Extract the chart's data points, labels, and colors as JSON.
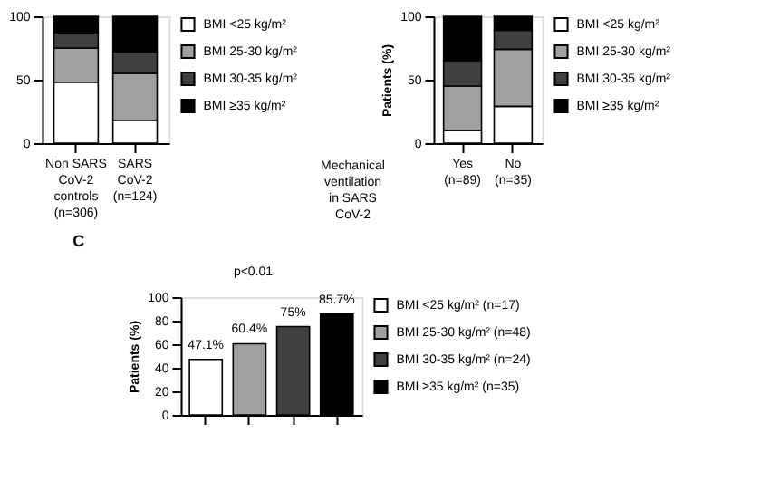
{
  "chart_data": [
    {
      "type": "bar",
      "stacked": true,
      "categories": [
        "Non SARS\nCoV-2\ncontrols\n(n=306)",
        "SARS\nCoV-2\n(n=124)"
      ],
      "ylim": [
        0,
        100
      ],
      "yticks": [
        0,
        50,
        100
      ],
      "legend": "right",
      "series": [
        {
          "name": "BMI <25 kg/m²",
          "color": "#ffffff",
          "values": [
            48,
            18
          ]
        },
        {
          "name": "BMI 25-30 kg/m²",
          "color": "#a0a0a0",
          "values": [
            27,
            37
          ]
        },
        {
          "name": "BMI 30-35 kg/m²",
          "color": "#404040",
          "values": [
            12,
            17
          ]
        },
        {
          "name": "BMI ≥35 kg/m²",
          "color": "#000000",
          "values": [
            13,
            28
          ]
        }
      ]
    },
    {
      "type": "bar",
      "stacked": true,
      "categories": [
        "Yes\n(n=89)",
        "No\n(n=35)"
      ],
      "xlabel": "Mechanical\nventilation\nin SARS\nCoV-2",
      "ylabel": "Patients (%)",
      "ylim": [
        0,
        100
      ],
      "yticks": [
        0,
        50,
        100
      ],
      "legend": "right",
      "series": [
        {
          "name": "BMI <25 kg/m²",
          "color": "#ffffff",
          "values": [
            10,
            29
          ]
        },
        {
          "name": "BMI 25-30 kg/m²",
          "color": "#a0a0a0",
          "values": [
            35,
            45
          ]
        },
        {
          "name": "BMI 30-35 kg/m²",
          "color": "#404040",
          "values": [
            20,
            15
          ]
        },
        {
          "name": "BMI ≥35 kg/m²",
          "color": "#000000",
          "values": [
            35,
            11
          ]
        }
      ]
    },
    {
      "type": "bar",
      "title": "C",
      "annotations": [
        "p<0.01"
      ],
      "categories": [
        null,
        null,
        null,
        null
      ],
      "ylabel": "Patients (%)",
      "ylim": [
        0,
        100
      ],
      "yticks": [
        0,
        20,
        40,
        60,
        80,
        100
      ],
      "legend": "right",
      "series": [
        {
          "name": "BMI <25 kg/m² (n=17)",
          "color": "#ffffff",
          "values": [
            47.1,
            null,
            null,
            null
          ],
          "value_labels": [
            "47.1%",
            null,
            null,
            null
          ]
        },
        {
          "name": "BMI 25-30 kg/m² (n=48)",
          "color": "#a0a0a0",
          "values": [
            null,
            60.4,
            null,
            null
          ],
          "value_labels": [
            null,
            "60.4%",
            null,
            null
          ]
        },
        {
          "name": "BMI 30-35 kg/m² (n=24)",
          "color": "#404040",
          "values": [
            null,
            null,
            75,
            null
          ],
          "value_labels": [
            null,
            null,
            "75%",
            null
          ]
        },
        {
          "name": "BMI ≥35 kg/m² (n=35)",
          "color": "#000000",
          "values": [
            null,
            null,
            null,
            85.7
          ],
          "value_labels": [
            null,
            null,
            null,
            "85.7%"
          ]
        }
      ]
    }
  ]
}
